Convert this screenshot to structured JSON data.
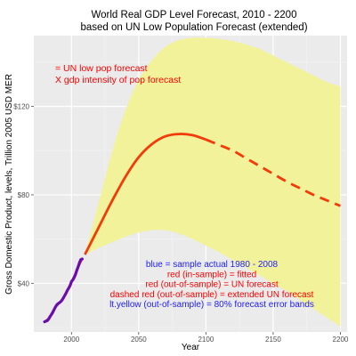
{
  "chart_data": {
    "type": "line",
    "title": "World Real GDP Level Forecast, 2010 - 2200",
    "subtitle": "based on UN Low Population Forecast (extended)",
    "xlabel": "Year",
    "ylabel": "Gross Domestic Product, levels, Trillion 2005 USD MER",
    "xlim": [
      1972,
      2205
    ],
    "ylim": [
      18,
      152
    ],
    "x_ticks": [
      2000,
      2050,
      2100,
      2150,
      2200
    ],
    "y_ticks": [
      40,
      80,
      120
    ],
    "y_tick_labels": [
      "$40",
      "$80",
      "$120"
    ],
    "grid": true,
    "colors": {
      "panel": "#ebebeb",
      "grid_major": "#ffffff",
      "grid_minor": "#f4f4f4",
      "band": "#f2f29a",
      "actual": "#6a0dad",
      "forecast": "#f23a0a"
    },
    "series": [
      {
        "name": "sample actual 1980 - 2008",
        "style": "blue",
        "x": [
          1980,
          1981,
          1982,
          1983,
          1984,
          1985,
          1986,
          1987,
          1988,
          1989,
          1990,
          1991,
          1992,
          1993,
          1994,
          1995,
          1996,
          1997,
          1998,
          1999,
          2000,
          2001,
          2002,
          2003,
          2004,
          2005,
          2006,
          2007,
          2008
        ],
        "y": [
          22.6,
          22.9,
          23.1,
          23.8,
          24.9,
          25.8,
          26.8,
          28.0,
          29.2,
          30.2,
          30.8,
          31.2,
          31.7,
          32.4,
          33.4,
          34.5,
          35.6,
          36.9,
          37.9,
          39.0,
          40.8,
          41.5,
          42.6,
          44.0,
          45.9,
          47.5,
          49.4,
          50.8,
          51.0
        ]
      },
      {
        "name": "fitted",
        "style": "red (in-sample)",
        "x": [
          1980,
          1984,
          1988,
          1992,
          1996,
          2000,
          2004,
          2008
        ],
        "y": [
          22.5,
          25.0,
          29.0,
          31.8,
          35.6,
          40.7,
          45.9,
          50.9
        ]
      },
      {
        "name": "UN forecast",
        "style": "red (out-of-sample)",
        "x": [
          2010,
          2020,
          2030,
          2040,
          2050,
          2060,
          2070,
          2080,
          2090,
          2100
        ],
        "y": [
          53,
          65,
          77,
          88,
          97,
          103,
          106.5,
          107.5,
          107,
          105
        ]
      },
      {
        "name": "extended UN forecast",
        "style": "dashed red (out-of-sample)",
        "x": [
          2100,
          2110,
          2120,
          2130,
          2140,
          2150,
          2160,
          2170,
          2180,
          2190,
          2200
        ],
        "y": [
          105,
          102.5,
          100,
          96.5,
          93,
          89.5,
          86,
          83,
          80,
          77.5,
          75
        ]
      },
      {
        "name": "80% forecast error bands",
        "style": "lt.yellow (out-of-sample)",
        "x": [
          2010,
          2020,
          2030,
          2040,
          2050,
          2060,
          2070,
          2080,
          2090,
          2100,
          2110,
          2120,
          2130,
          2140,
          2150,
          2160,
          2170,
          2180,
          2190,
          2200
        ],
        "lower": [
          53,
          56,
          58.5,
          61,
          63,
          64,
          64,
          62.5,
          60,
          57,
          54,
          50.5,
          47,
          43.5,
          40,
          36.5,
          32.5,
          28.5,
          24.5,
          20.5
        ],
        "upper": [
          53,
          76,
          99,
          118,
          132,
          141,
          147,
          150,
          151,
          151,
          150.5,
          149.5,
          148,
          146,
          143,
          140,
          137,
          134,
          131,
          129
        ]
      }
    ],
    "annotations": {
      "top_note": [
        "= UN low pop forecast",
        "X gdp intensity of pop forecast"
      ],
      "legend_lines": [
        {
          "text": "blue = sample actual 1980 - 2008",
          "color": "#1d1dff"
        },
        {
          "text": "red (in-sample) = fitted",
          "color": "#ff0000"
        },
        {
          "text": "red (out-of-sample) = UN forecast",
          "color": "#ff0000"
        },
        {
          "text": "dashed red (out-of-sample) = extended UN forecast",
          "color": "#ff0000"
        },
        {
          "text": "lt.yellow (out-of-sample) = 80% forecast error bands",
          "color": "#1d1dff"
        }
      ]
    }
  }
}
